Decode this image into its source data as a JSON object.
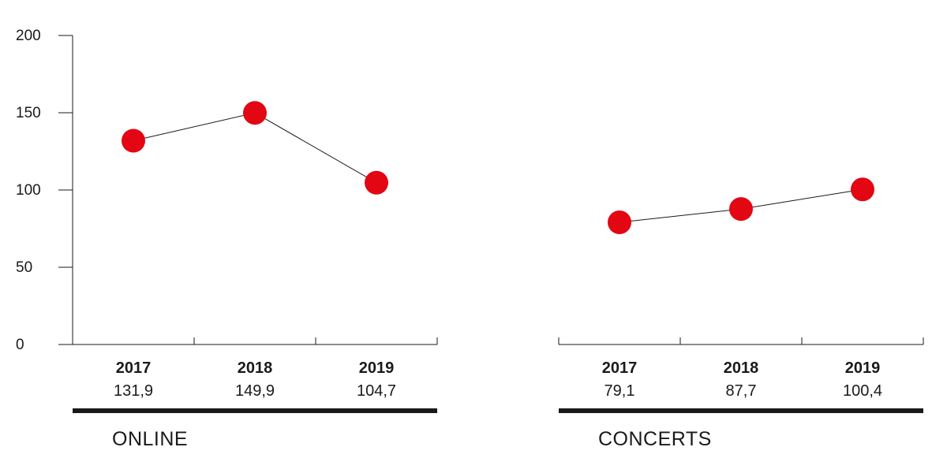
{
  "chart_data": [
    {
      "type": "line",
      "title": "ONLINE",
      "categories": [
        "2017",
        "2018",
        "2019"
      ],
      "values": [
        131.9,
        149.9,
        104.7
      ],
      "value_labels": [
        "131,9",
        "149,9",
        "104,7"
      ],
      "ylim": [
        0,
        200
      ],
      "yticks": [
        "0",
        "50",
        "100",
        "150",
        "200"
      ],
      "grid": false,
      "marker_color": "#e30613",
      "line_color": "#1a1a1a"
    },
    {
      "type": "line",
      "title": "CONCERTS",
      "categories": [
        "2017",
        "2018",
        "2019"
      ],
      "values": [
        79.1,
        87.7,
        100.4
      ],
      "value_labels": [
        "79,1",
        "87,7",
        "100,4"
      ],
      "ylim": [
        0,
        200
      ],
      "grid": false,
      "marker_color": "#e30613",
      "line_color": "#1a1a1a"
    }
  ]
}
